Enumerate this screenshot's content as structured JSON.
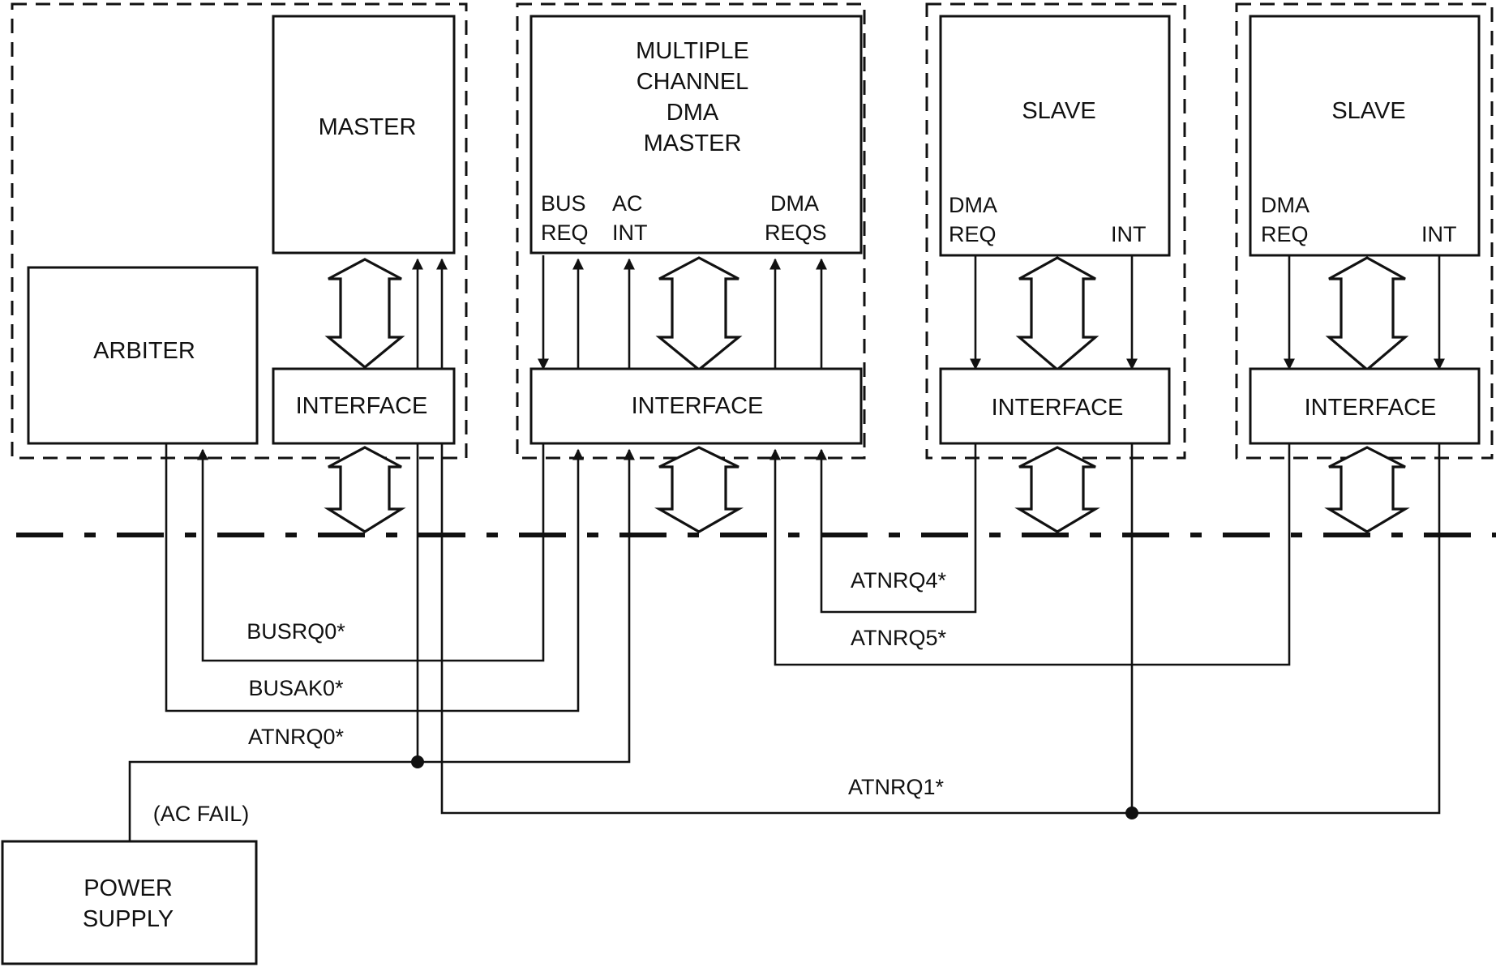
{
  "blocks": {
    "master": {
      "label": [
        "MASTER"
      ],
      "interface": "INTERFACE"
    },
    "arbiter": {
      "label": [
        "ARBITER"
      ]
    },
    "dma_master": {
      "label": [
        "MULTIPLE",
        "CHANNEL",
        "DMA",
        "MASTER"
      ],
      "interface": "INTERFACE",
      "pins": {
        "bus_req": [
          "BUS",
          "REQ"
        ],
        "ac_int": [
          "AC",
          "INT"
        ],
        "dma_reqs": [
          "DMA",
          "REQS"
        ]
      }
    },
    "slave_1": {
      "label": [
        "SLAVE"
      ],
      "interface": "INTERFACE",
      "pins": {
        "dma_req": [
          "DMA",
          "REQ"
        ],
        "int": "INT"
      }
    },
    "slave_2": {
      "label": [
        "SLAVE"
      ],
      "interface": "INTERFACE",
      "pins": {
        "dma_req": [
          "DMA",
          "REQ"
        ],
        "int": "INT"
      }
    },
    "power_supply": {
      "label": [
        "POWER",
        "SUPPLY"
      ]
    }
  },
  "signals": {
    "busrq0": "BUSRQ0*",
    "busak0": "BUSAK0*",
    "atnrq0": "ATNRQ0*",
    "atnrq1": "ATNRQ1*",
    "atnrq4": "ATNRQ4*",
    "atnrq5": "ATNRQ5*",
    "ac_fail": "(AC FAIL)"
  }
}
